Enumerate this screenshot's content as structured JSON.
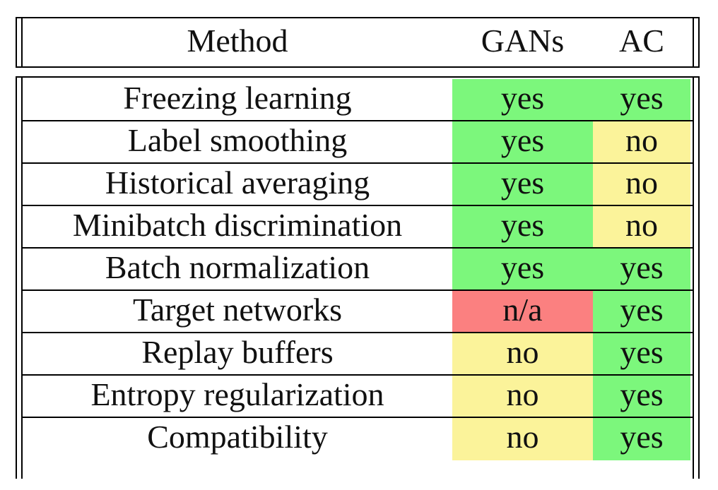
{
  "header": {
    "method": "Method",
    "gans": "GANs",
    "ac": "AC"
  },
  "colors": {
    "yes": "#7cf77c",
    "no": "#fbf39a",
    "na": "#fb8080"
  },
  "rows": [
    {
      "method": "Freezing learning",
      "gans": "yes",
      "ac": "yes"
    },
    {
      "method": "Label smoothing",
      "gans": "yes",
      "ac": "no"
    },
    {
      "method": "Historical averaging",
      "gans": "yes",
      "ac": "no"
    },
    {
      "method": "Minibatch discrimination",
      "gans": "yes",
      "ac": "no"
    },
    {
      "method": "Batch normalization",
      "gans": "yes",
      "ac": "yes"
    },
    {
      "method": "Target networks",
      "gans": "n/a",
      "ac": "yes"
    },
    {
      "method": "Replay buffers",
      "gans": "no",
      "ac": "yes"
    },
    {
      "method": "Entropy regularization",
      "gans": "no",
      "ac": "yes"
    },
    {
      "method": "Compatibility",
      "gans": "no",
      "ac": "yes"
    }
  ]
}
